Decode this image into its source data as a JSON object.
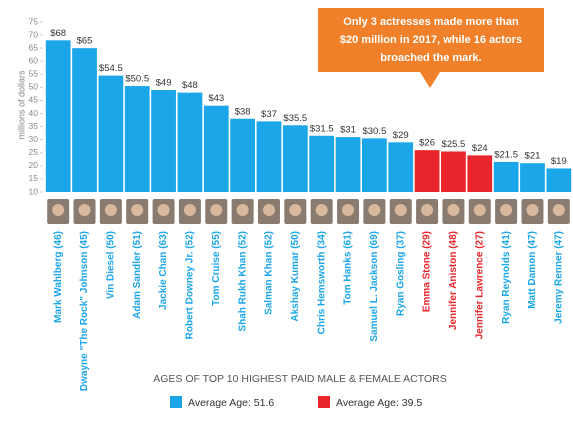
{
  "chart_data": {
    "type": "bar",
    "y_axis_label": "millions of dollars",
    "categories": [
      "Mark Wahlberg (46)",
      "Dwayne \"The Rock\" Johnson (45)",
      "Vin Diesel (50)",
      "Adam Sandler (51)",
      "Jackie Chan (63)",
      "Robert Downey Jr. (52)",
      "Tom Cruise (55)",
      "Shah Rukh Khan (52)",
      "Salman Khan (52)",
      "Akshay Kumar (50)",
      "Chris Hemsworth (34)",
      "Tom Hanks (61)",
      "Samuel L. Jackson (69)",
      "Ryan Gosling (37)",
      "Emma Stone (29)",
      "Jennifer Aniston (48)",
      "Jennifer Lawrence (27)",
      "Ryan Reynolds (41)",
      "Matt Damon (47)",
      "Jeremy Renner (47)"
    ],
    "values": [
      68,
      65,
      54.5,
      50.5,
      49,
      48,
      43,
      38,
      37,
      35.5,
      31.5,
      31,
      30.5,
      29,
      26,
      25.5,
      24,
      21.5,
      21,
      19
    ],
    "value_labels": [
      "$68",
      "$65",
      "$54.5",
      "$50.5",
      "$49",
      "$48",
      "$43",
      "$38",
      "$37",
      "$35.5",
      "$31.5",
      "$31",
      "$30.5",
      "$29",
      "$26",
      "$25.5",
      "$24",
      "$21.5",
      "$21",
      "$19"
    ],
    "colors": [
      "#1ba6ea",
      "#1ba6ea",
      "#1ba6ea",
      "#1ba6ea",
      "#1ba6ea",
      "#1ba6ea",
      "#1ba6ea",
      "#1ba6ea",
      "#1ba6ea",
      "#1ba6ea",
      "#1ba6ea",
      "#1ba6ea",
      "#1ba6ea",
      "#1ba6ea",
      "#e8262b",
      "#e8262b",
      "#e8262b",
      "#1ba6ea",
      "#1ba6ea",
      "#1ba6ea"
    ],
    "ylim": [
      10,
      75
    ],
    "yticks": [
      10,
      15,
      20,
      25,
      30,
      35,
      40,
      45,
      50,
      55,
      60,
      65,
      70,
      75
    ],
    "annotation": [
      "Only 3 actresses made more than",
      "$20 million in 2017, while 16 actors",
      "broached the mark."
    ],
    "x_axis_label": "AGES OF TOP 10 HIGHEST PAID MALE & FEMALE ACTORS",
    "legend": [
      {
        "label": "Average Age: 51.6",
        "color": "#1ba6ea"
      },
      {
        "label": "Average Age: 39.5",
        "color": "#e8262b"
      }
    ]
  }
}
